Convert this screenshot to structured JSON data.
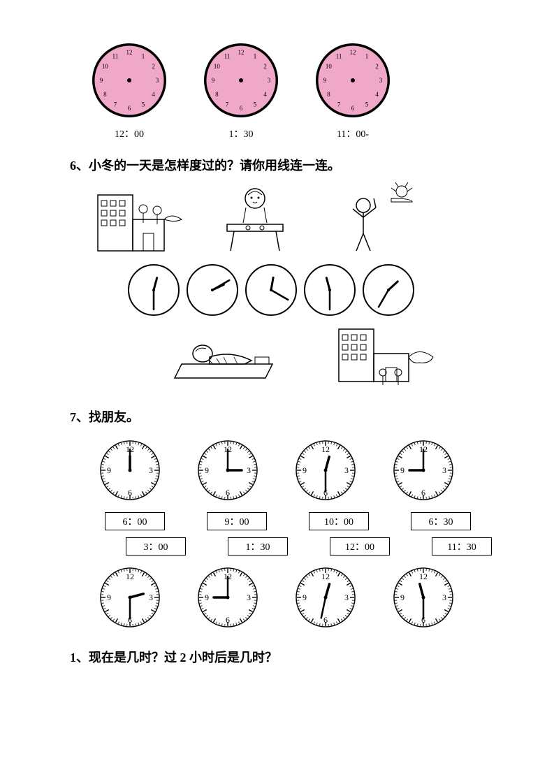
{
  "pink_clocks": {
    "face_color": "#f0a8c8",
    "stroke": "#000000",
    "radius": 50,
    "items": [
      {
        "caption": "12：00"
      },
      {
        "caption": "1：30"
      },
      {
        "caption": "11：00-"
      }
    ],
    "numerals": [
      "12",
      "1",
      "2",
      "3",
      "4",
      "5",
      "6",
      "7",
      "8",
      "9",
      "10",
      "11"
    ]
  },
  "q6": {
    "title": "6、小冬的一天是怎样度过的？请你用线连一连。",
    "scenes_top": [
      "school-building",
      "boy-at-table",
      "boy-exercise-sun"
    ],
    "mid_clocks": [
      {
        "hour": 12,
        "minute": 30
      },
      {
        "hour": 2,
        "minute": 10
      },
      {
        "hour": 12,
        "minute": 20
      },
      {
        "hour": 11,
        "minute": 30
      },
      {
        "hour": 1,
        "minute": 35
      }
    ],
    "scenes_bottom": [
      "boy-sleeping",
      "school-departure"
    ]
  },
  "q7": {
    "title": "7、找朋友。",
    "row1": [
      {
        "hour": 12,
        "minute": 0
      },
      {
        "hour": 3,
        "minute": 0
      },
      {
        "hour": 12,
        "minute": 30
      },
      {
        "hour": 9,
        "minute": 0
      }
    ],
    "labels_row1": [
      "6：00",
      "9：00",
      "10：00",
      "6：30"
    ],
    "labels_row2": [
      "3：00",
      "1：30",
      "12：00",
      "11：30"
    ],
    "row2": [
      {
        "hour": 2,
        "minute": 30
      },
      {
        "hour": 9,
        "minute": 0
      },
      {
        "hour": 12,
        "minute": 32
      },
      {
        "hour": 11,
        "minute": 30
      }
    ],
    "numerals_4": [
      "12",
      "3",
      "6",
      "9"
    ],
    "tick_color": "#000000",
    "face_color": "#ffffff",
    "radius": 42
  },
  "q1": {
    "title": "1、现在是几时？过 2 小时后是几时？"
  }
}
